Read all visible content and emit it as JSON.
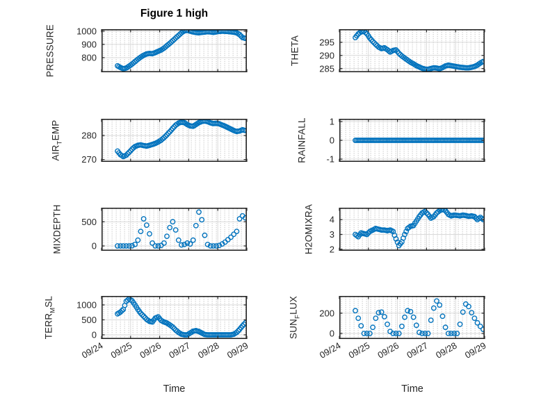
{
  "chart_data": {
    "type": "scatter",
    "title": "Figure 1 high",
    "xlabel": "Time",
    "marker": "open-circle",
    "marker_color": "#0072BD",
    "grid": "major solid + dotted minor",
    "xlim": [
      0,
      5
    ],
    "xticks": [
      0,
      1,
      2,
      3,
      4,
      5
    ],
    "xtick_labels": [
      "09/24",
      "09/25",
      "09/26",
      "09/27",
      "09/28",
      "09/29"
    ],
    "x_days": [
      0.55,
      0.65,
      0.75,
      0.85,
      0.95,
      1.05,
      1.15,
      1.25,
      1.35,
      1.45,
      1.55,
      1.65,
      1.75,
      1.85,
      1.95,
      2.05,
      2.15,
      2.25,
      2.35,
      2.45,
      2.55,
      2.65,
      2.75,
      2.85,
      2.95,
      3.05,
      3.15,
      3.25,
      3.35,
      3.45,
      3.55,
      3.65,
      3.75,
      3.85,
      3.95,
      4.05,
      4.15,
      4.25,
      4.35,
      4.45,
      4.55,
      4.65,
      4.75,
      4.85,
      4.95
    ],
    "subplots": [
      {
        "name": "PRESSURE",
        "ylabel": {
          "pre": "PRESSURE",
          "sub": "",
          "post": ""
        },
        "ylim": [
          690,
          1015
        ],
        "yticks": [
          800,
          900,
          1000
        ],
        "show_x_labels": false,
        "values": [
          738,
          726,
          716,
          722,
          736,
          752,
          770,
          788,
          804,
          818,
          828,
          832,
          830,
          838,
          848,
          858,
          872,
          890,
          908,
          928,
          948,
          968,
          988,
          1002,
          1006,
          1000,
          994,
          990,
          988,
          991,
          993,
          996,
          994,
          991,
          995,
          998,
          1000,
          999,
          997,
          995,
          992,
          988,
          974,
          952,
          946
        ]
      },
      {
        "name": "THETA",
        "ylabel": {
          "pre": "THETA",
          "sub": "",
          "post": ""
        },
        "ylim": [
          283.6,
          300
        ],
        "yticks": [
          285,
          290,
          295
        ],
        "show_x_labels": false,
        "values": [
          296.8,
          298.2,
          299.0,
          299.2,
          298.2,
          296.6,
          295.3,
          294.2,
          293.2,
          292.6,
          292.9,
          292.2,
          291.3,
          291.9,
          292.1,
          290.8,
          289.8,
          289.0,
          288.2,
          287.4,
          286.8,
          286.1,
          285.6,
          285.1,
          284.8,
          284.7,
          285.0,
          285.3,
          285.2,
          284.9,
          285.4,
          286.0,
          286.3,
          286.1,
          285.9,
          285.7,
          285.5,
          285.4,
          285.3,
          285.3,
          285.5,
          285.8,
          286.3,
          287.1,
          287.7
        ]
      },
      {
        "name": "AIR_TEMP",
        "ylabel": {
          "pre": "AIR",
          "sub": "T",
          "post": "EMP"
        },
        "ylim": [
          269,
          287
        ],
        "yticks": [
          270,
          280
        ],
        "show_x_labels": false,
        "values": [
          273.5,
          272.0,
          271.2,
          271.8,
          273.0,
          274.3,
          275.4,
          275.9,
          276.1,
          275.8,
          275.6,
          275.9,
          276.3,
          276.7,
          277.3,
          278.1,
          279.1,
          280.3,
          281.6,
          283.0,
          284.3,
          285.2,
          285.6,
          285.4,
          284.6,
          284.0,
          283.9,
          284.6,
          285.4,
          285.9,
          286.1,
          285.8,
          285.3,
          285.0,
          285.1,
          284.9,
          284.4,
          283.9,
          283.3,
          282.7,
          282.1,
          281.7,
          281.9,
          282.4,
          282.1
        ]
      },
      {
        "name": "RAINFALL",
        "ylabel": {
          "pre": "RAINFALL",
          "sub": "",
          "post": ""
        },
        "ylim": [
          -1.15,
          1.15
        ],
        "yticks": [
          -1,
          0,
          1
        ],
        "show_x_labels": false,
        "values": [
          0,
          0,
          0,
          0,
          0,
          0,
          0,
          0,
          0,
          0,
          0,
          0,
          0,
          0,
          0,
          0,
          0,
          0,
          0,
          0,
          0,
          0,
          0,
          0,
          0,
          0,
          0,
          0,
          0,
          0,
          0,
          0,
          0,
          0,
          0,
          0,
          0,
          0,
          0,
          0,
          0,
          0,
          0,
          0,
          0
        ]
      },
      {
        "name": "MIXDEPTH",
        "ylabel": {
          "pre": "MIXDEPTH",
          "sub": "",
          "post": ""
        },
        "ylim": [
          -100,
          790
        ],
        "yticks": [
          0,
          500
        ],
        "show_x_labels": false,
        "values": [
          0,
          0,
          0,
          0,
          0,
          5,
          30,
          120,
          300,
          560,
          430,
          250,
          60,
          0,
          0,
          10,
          60,
          200,
          380,
          500,
          330,
          120,
          20,
          30,
          60,
          40,
          120,
          420,
          700,
          540,
          220,
          30,
          0,
          0,
          0,
          10,
          40,
          80,
          130,
          180,
          240,
          300,
          560,
          620,
          580
        ]
      },
      {
        "name": "H2OMIXRA",
        "ylabel": {
          "pre": "H2OMIXRA",
          "sub": "",
          "post": ""
        },
        "ylim": [
          1.9,
          4.8
        ],
        "yticks": [
          2,
          3,
          4
        ],
        "show_x_labels": false,
        "values": [
          3.0,
          2.85,
          3.1,
          3.05,
          3.0,
          3.2,
          3.3,
          3.4,
          3.35,
          3.3,
          3.3,
          3.25,
          3.3,
          3.2,
          2.7,
          2.25,
          2.5,
          3.0,
          3.4,
          3.55,
          3.6,
          3.9,
          4.2,
          4.45,
          4.55,
          4.35,
          4.1,
          4.2,
          4.45,
          4.6,
          4.7,
          4.6,
          4.35,
          4.25,
          4.3,
          4.28,
          4.25,
          4.3,
          4.27,
          4.22,
          4.25,
          4.2,
          4.0,
          4.15,
          4.0
        ]
      },
      {
        "name": "TERR_MSL",
        "ylabel": {
          "pre": "TERR",
          "sub": "M",
          "post": "SL"
        },
        "ylim": [
          -140,
          1300
        ],
        "yticks": [
          0,
          500,
          1000
        ],
        "show_x_labels": true,
        "values": [
          700,
          760,
          850,
          1120,
          1200,
          1140,
          1000,
          850,
          720,
          620,
          520,
          450,
          430,
          560,
          600,
          480,
          430,
          395,
          330,
          260,
          160,
          80,
          20,
          0,
          0,
          60,
          120,
          140,
          110,
          60,
          10,
          0,
          0,
          0,
          0,
          0,
          0,
          0,
          0,
          0,
          20,
          80,
          180,
          300,
          400
        ]
      },
      {
        "name": "SUN_FLUX",
        "ylabel": {
          "pre": "SUN",
          "sub": "F",
          "post": "LUX"
        },
        "ylim": [
          -55,
          370
        ],
        "yticks": [
          0,
          200
        ],
        "show_x_labels": true,
        "values": [
          225,
          150,
          75,
          0,
          0,
          0,
          60,
          150,
          205,
          210,
          165,
          90,
          20,
          0,
          0,
          0,
          70,
          160,
          225,
          215,
          160,
          80,
          10,
          0,
          0,
          0,
          130,
          250,
          320,
          280,
          170,
          60,
          0,
          0,
          0,
          0,
          90,
          210,
          290,
          265,
          205,
          150,
          105,
          70,
          40
        ]
      }
    ]
  },
  "style": {
    "background": "#ffffff",
    "axis_color": "#262626",
    "text_color": "#262626",
    "title_color": "#000000",
    "grid_color": "#d9d9d9",
    "minor_dot_color": "#bfbfbf"
  }
}
